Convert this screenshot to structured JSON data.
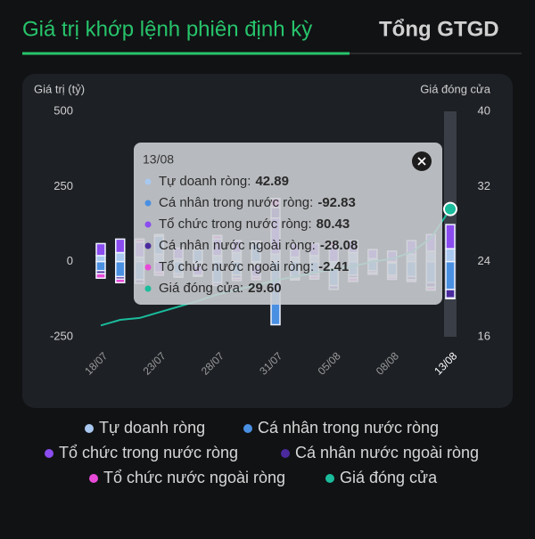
{
  "tabs": {
    "active": "Giá trị khớp lệnh phiên định kỳ",
    "inactive": "Tổng GTGD"
  },
  "chart_data": {
    "type": "bar-line",
    "y_label": "Giá trị (tỷ)",
    "y2_label": "Giá đóng cửa",
    "categories": [
      "18/07",
      null,
      null,
      "23/07",
      null,
      null,
      "28/07",
      null,
      null,
      "31/07",
      null,
      null,
      "05/08",
      null,
      null,
      "08/08",
      null,
      null,
      "13/08"
    ],
    "ylim": [
      -250,
      500
    ],
    "yticks": [
      -250,
      0,
      250,
      500
    ],
    "y2lim": [
      16,
      40
    ],
    "y2ticks": [
      16,
      24,
      32,
      40
    ],
    "series": [
      {
        "name": "Tự doanh ròng",
        "color": "#a9c8f0",
        "values": [
          20,
          30,
          15,
          25,
          10,
          -15,
          20,
          30,
          -10,
          25,
          15,
          20,
          -20,
          30,
          10,
          -5,
          25,
          35,
          42.89
        ]
      },
      {
        "name": "Cá nhân trong nước ròng",
        "color": "#4a90e2",
        "values": [
          -30,
          -50,
          -60,
          60,
          -40,
          40,
          -70,
          -45,
          60,
          -210,
          -50,
          -40,
          -60,
          -45,
          -30,
          -40,
          -50,
          -70,
          -92.83
        ]
      },
      {
        "name": "Tổ chức trong nước ròng",
        "color": "#8b4cf0",
        "values": [
          40,
          45,
          50,
          -35,
          35,
          -30,
          55,
          40,
          -40,
          120,
          45,
          40,
          50,
          40,
          30,
          35,
          45,
          55,
          80.43
        ]
      },
      {
        "name": "Cá nhân nước ngoài ròng",
        "color": "#4b2a9e",
        "values": [
          -10,
          -8,
          -12,
          5,
          -7,
          6,
          -9,
          -10,
          8,
          35,
          -6,
          -8,
          -12,
          -9,
          -7,
          -6,
          -10,
          -15,
          -28.08
        ]
      },
      {
        "name": "Tổ chức nước ngoài ròng",
        "color": "#e84ad8",
        "values": [
          -15,
          -12,
          10,
          -10,
          -5,
          -4,
          12,
          -8,
          -10,
          30,
          -5,
          -10,
          15,
          -12,
          -5,
          -8,
          -6,
          -10,
          -2.41
        ]
      },
      {
        "name": "Giá đóng cửa",
        "color": "#1abc9c",
        "type": "line",
        "axis": "y2",
        "values": [
          17.2,
          17.8,
          18.0,
          18.6,
          19.2,
          19.8,
          20.5,
          21.0,
          21.5,
          22.0,
          22.4,
          22.8,
          23.2,
          23.5,
          24.0,
          24.3,
          25.0,
          26.5,
          29.6
        ]
      }
    ],
    "tooltip": {
      "index": 18,
      "rows": [
        {
          "label": "Tự doanh ròng:",
          "value": 42.89
        },
        {
          "label": "Cá nhân trong nước ròng:",
          "value": -92.83
        },
        {
          "label": "Tổ chức trong nước ròng:",
          "value": 80.43
        },
        {
          "label": "Cá nhân nước ngoài ròng:",
          "value": -28.08
        },
        {
          "label": "Tổ chức nước ngoài ròng:",
          "value": -2.41
        },
        {
          "label": "Giá đóng cửa:",
          "value": 29.6,
          "value_label": "29.60"
        }
      ]
    }
  }
}
